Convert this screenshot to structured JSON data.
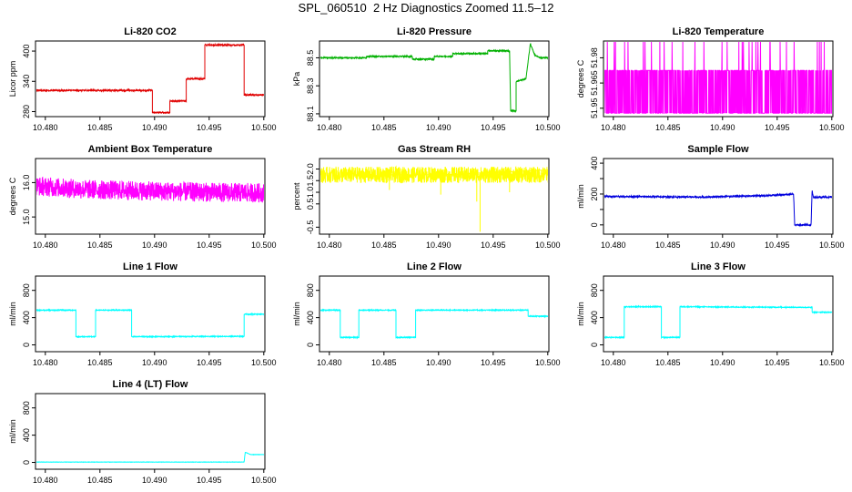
{
  "page": {
    "title": "SPL_060510  2 Hz Diagnostics Zoomed 11.5–12"
  },
  "chart_data": [
    {
      "type": "line",
      "title": "Li-820 CO2",
      "ylabel": "Licor ppm",
      "color": "#e00000",
      "xlim": [
        10.4791,
        10.5001
      ],
      "ylim": [
        270,
        420
      ],
      "x_ticks": [
        10.48,
        10.485,
        10.49,
        10.495,
        10.5
      ],
      "x_tick_labels": [
        "10.480",
        "10.485",
        "10.490",
        "10.495",
        "10.500"
      ],
      "y_ticks": [
        280,
        340,
        400
      ],
      "y_tick_labels": [
        "280",
        "340",
        "400"
      ],
      "noise": 1.5,
      "series": [
        {
          "x": [
            10.4791,
            10.4898,
            10.4898,
            10.4914,
            10.4914,
            10.4929,
            10.4929,
            10.4946,
            10.4946,
            10.4982,
            10.4982,
            10.5001
          ],
          "y": [
            322,
            322,
            278,
            278,
            301,
            301,
            345,
            345,
            412,
            412,
            313,
            313
          ]
        }
      ]
    },
    {
      "type": "line",
      "title": "Li-820 Pressure",
      "ylabel": "kPa",
      "color": "#00b000",
      "xlim": [
        10.4791,
        10.5001
      ],
      "ylim": [
        88.08,
        88.62
      ],
      "x_ticks": [
        10.48,
        10.485,
        10.49,
        10.495,
        10.5
      ],
      "x_tick_labels": [
        "10.480",
        "10.485",
        "10.490",
        "10.495",
        "10.500"
      ],
      "y_ticks": [
        88.1,
        88.3,
        88.5
      ],
      "y_tick_labels": [
        "88.1",
        "88.3",
        "88.5"
      ],
      "noise": 0.004,
      "series": [
        {
          "x": [
            10.4791,
            10.4834,
            10.4834,
            10.4876,
            10.4876,
            10.4896,
            10.4896,
            10.4913,
            10.4913,
            10.4945,
            10.4945,
            10.4965,
            10.4966,
            10.4966,
            10.4971,
            10.4971,
            10.498,
            10.4984,
            10.4988,
            10.4993,
            10.5001
          ],
          "y": [
            88.5,
            88.5,
            88.51,
            88.51,
            88.49,
            88.49,
            88.51,
            88.51,
            88.53,
            88.53,
            88.55,
            88.55,
            88.12,
            88.12,
            88.12,
            88.33,
            88.35,
            88.6,
            88.52,
            88.5,
            88.5
          ]
        }
      ]
    },
    {
      "type": "line",
      "title": "Li-820 Temperature",
      "ylabel": "degrees C",
      "color": "#ff00ff",
      "xlim": [
        10.4791,
        10.5001
      ],
      "ylim": [
        51.945,
        51.99
      ],
      "x_ticks": [
        10.48,
        10.485,
        10.49,
        10.495,
        10.5
      ],
      "x_tick_labels": [
        "10.480",
        "10.485",
        "10.490",
        "10.495",
        "10.500"
      ],
      "y_ticks": [
        51.95,
        51.965,
        51.98
      ],
      "y_tick_labels": [
        "51.95",
        "51.965",
        "51.98"
      ],
      "pattern": "binary",
      "levels": [
        51.947,
        51.9725
      ],
      "spike_level": 51.99,
      "series": [
        {
          "x": [
            10.4791,
            10.5001
          ],
          "y": [
            51.9725,
            51.9725
          ]
        }
      ]
    },
    {
      "type": "line",
      "title": "Ambient Box Temperature",
      "ylabel": "degrees C",
      "color": "#ff00ff",
      "xlim": [
        10.4791,
        10.5001
      ],
      "ylim": [
        14.5,
        16.7
      ],
      "x_ticks": [
        10.48,
        10.485,
        10.49,
        10.495,
        10.5
      ],
      "x_tick_labels": [
        "10.480",
        "10.485",
        "10.490",
        "10.495",
        "10.500"
      ],
      "y_ticks": [
        15.0,
        16.0
      ],
      "y_tick_labels": [
        "15.0",
        "16.0"
      ],
      "noise": 0.28,
      "series": [
        {
          "x": [
            10.4791,
            10.484,
            10.49,
            10.495,
            10.5001
          ],
          "y": [
            15.9,
            15.8,
            15.75,
            15.72,
            15.7
          ]
        }
      ]
    },
    {
      "type": "line",
      "title": "Gas Stream RH",
      "ylabel": "percent",
      "color": "#ffff00",
      "xlim": [
        10.4791,
        10.5001
      ],
      "ylim": [
        -0.8,
        2.45
      ],
      "x_ticks": [
        10.48,
        10.485,
        10.49,
        10.495,
        10.5
      ],
      "x_tick_labels": [
        "10.480",
        "10.485",
        "10.490",
        "10.495",
        "10.500"
      ],
      "y_ticks": [
        -0.5,
        0.5,
        1.0,
        1.5,
        2.0
      ],
      "y_tick_labels": [
        "-0.5",
        "0.5",
        "1.0",
        "1.5",
        "2.0"
      ],
      "noise": 0.35,
      "dips": [
        [
          10.4902,
          0.9
        ],
        [
          10.4938,
          -0.7
        ],
        [
          10.4935,
          0.6
        ],
        [
          10.4855,
          1.1
        ],
        [
          10.4965,
          1.0
        ]
      ],
      "series": [
        {
          "x": [
            10.4791,
            10.5001
          ],
          "y": [
            1.75,
            1.75
          ]
        }
      ]
    },
    {
      "type": "line",
      "title": "Sample Flow",
      "ylabel": "ml/min",
      "color": "#0000dd",
      "xlim": [
        10.4791,
        10.5001
      ],
      "ylim": [
        -60,
        430
      ],
      "x_ticks": [
        10.48,
        10.485,
        10.49,
        10.495,
        10.5
      ],
      "x_tick_labels": [
        "10.480",
        "10.485",
        "10.490",
        "10.495",
        "10.500"
      ],
      "y_ticks": [
        0,
        100,
        200,
        300,
        400
      ],
      "y_tick_labels": [
        "0",
        "",
        "200",
        "",
        "400"
      ],
      "noise": 5,
      "series": [
        {
          "x": [
            10.4791,
            10.488,
            10.494,
            10.4965,
            10.4966,
            10.4981,
            10.4982,
            10.4983,
            10.499,
            10.5001
          ],
          "y": [
            185,
            180,
            190,
            200,
            0,
            0,
            225,
            180,
            180,
            180
          ]
        }
      ]
    },
    {
      "type": "line",
      "title": "Line 1 Flow",
      "ylabel": "ml/min",
      "color": "#00ffff",
      "xlim": [
        10.4791,
        10.5001
      ],
      "ylim": [
        -100,
        1010
      ],
      "x_ticks": [
        10.48,
        10.485,
        10.49,
        10.495,
        10.5
      ],
      "x_tick_labels": [
        "10.480",
        "10.485",
        "10.490",
        "10.495",
        "10.500"
      ],
      "y_ticks": [
        0,
        400,
        800
      ],
      "y_tick_labels": [
        "0",
        "400",
        "800"
      ],
      "noise": 6,
      "series": [
        {
          "x": [
            10.4791,
            10.4828,
            10.4828,
            10.4846,
            10.4846,
            10.4879,
            10.4879,
            10.4982,
            10.4982,
            10.5001
          ],
          "y": [
            510,
            510,
            120,
            120,
            510,
            510,
            120,
            125,
            450,
            450
          ]
        }
      ]
    },
    {
      "type": "line",
      "title": "Line 2 Flow",
      "ylabel": "ml/min",
      "color": "#00ffff",
      "xlim": [
        10.4791,
        10.5001
      ],
      "ylim": [
        -100,
        1010
      ],
      "x_ticks": [
        10.48,
        10.485,
        10.49,
        10.495,
        10.5
      ],
      "x_tick_labels": [
        "10.480",
        "10.485",
        "10.490",
        "10.495",
        "10.500"
      ],
      "y_ticks": [
        0,
        400,
        800
      ],
      "y_tick_labels": [
        "0",
        "400",
        "800"
      ],
      "noise": 6,
      "series": [
        {
          "x": [
            10.4791,
            10.481,
            10.481,
            10.4827,
            10.4827,
            10.4861,
            10.4861,
            10.4879,
            10.4879,
            10.4982,
            10.4982,
            10.5001
          ],
          "y": [
            510,
            510,
            110,
            110,
            510,
            510,
            110,
            110,
            510,
            510,
            420,
            420
          ]
        }
      ]
    },
    {
      "type": "line",
      "title": "Line 3 Flow",
      "ylabel": "ml/min",
      "color": "#00ffff",
      "xlim": [
        10.4791,
        10.5001
      ],
      "ylim": [
        -100,
        1010
      ],
      "x_ticks": [
        10.48,
        10.485,
        10.49,
        10.495,
        10.5
      ],
      "x_tick_labels": [
        "10.480",
        "10.485",
        "10.490",
        "10.495",
        "10.500"
      ],
      "y_ticks": [
        0,
        400,
        800
      ],
      "y_tick_labels": [
        "0",
        "400",
        "800"
      ],
      "noise": 6,
      "series": [
        {
          "x": [
            10.4791,
            10.481,
            10.481,
            10.4844,
            10.4844,
            10.4861,
            10.4861,
            10.4982,
            10.4982,
            10.5001
          ],
          "y": [
            110,
            110,
            560,
            560,
            110,
            110,
            560,
            550,
            480,
            480
          ]
        }
      ]
    },
    {
      "type": "line",
      "title": "Line 4 (LT) Flow",
      "ylabel": "ml/min",
      "color": "#00ffff",
      "xlim": [
        10.4791,
        10.5001
      ],
      "ylim": [
        -100,
        1010
      ],
      "x_ticks": [
        10.48,
        10.485,
        10.49,
        10.495,
        10.5
      ],
      "x_tick_labels": [
        "10.480",
        "10.485",
        "10.490",
        "10.495",
        "10.500"
      ],
      "y_ticks": [
        0,
        400,
        800
      ],
      "y_tick_labels": [
        "0",
        "400",
        "800"
      ],
      "noise": 2,
      "series": [
        {
          "x": [
            10.4791,
            10.4982,
            10.4983,
            10.4988,
            10.5001
          ],
          "y": [
            5,
            5,
            150,
            115,
            115
          ]
        }
      ]
    }
  ]
}
